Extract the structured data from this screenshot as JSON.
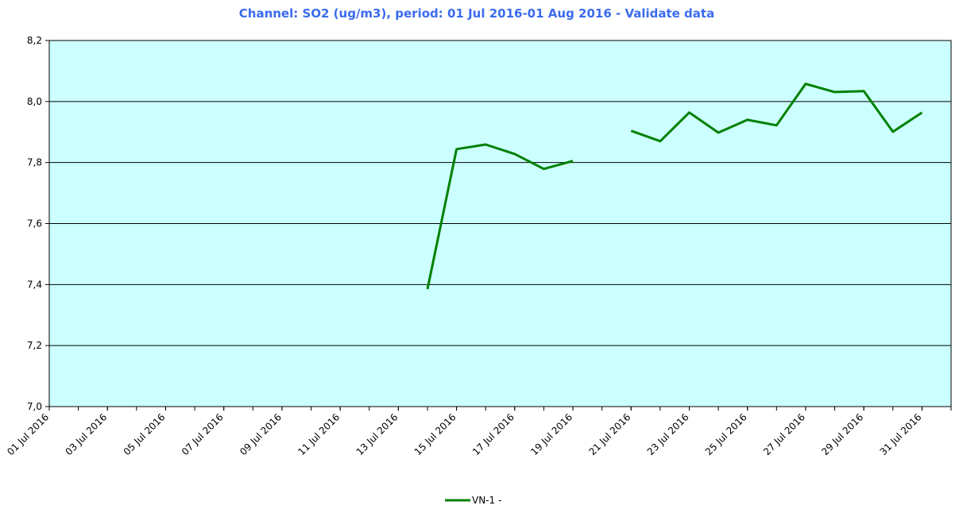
{
  "chart_data": {
    "type": "line",
    "title": "Channel: SO2 (ug/m3), period: 01 Jul 2016-01 Aug 2016 - Validate data",
    "x": [
      "14 Jul 2016",
      "15 Jul 2016",
      "16 Jul 2016",
      "17 Jul 2016",
      "18 Jul 2016",
      "19 Jul 2016",
      "20 Jul 2016",
      "21 Jul 2016",
      "22 Jul 2016",
      "23 Jul 2016",
      "24 Jul 2016",
      "25 Jul 2016",
      "26 Jul 2016",
      "27 Jul 2016",
      "28 Jul 2016",
      "29 Jul 2016",
      "30 Jul 2016",
      "31 Jul 2016"
    ],
    "series": [
      {
        "name": "VN-1 -",
        "color": "#008000",
        "values": [
          7.385,
          7.844,
          7.859,
          7.828,
          7.779,
          7.805,
          null,
          7.904,
          7.87,
          7.964,
          7.898,
          7.94,
          7.922,
          8.058,
          8.031,
          8.034,
          7.901,
          7.964
        ]
      }
    ],
    "xlim": [
      "01 Jul 2016",
      "01 Aug 2016"
    ],
    "xticks": [
      "01 Jul 2016",
      "03 Jul 2016",
      "05 Jul 2016",
      "07 Jul 2016",
      "09 Jul 2016",
      "11 Jul 2016",
      "13 Jul 2016",
      "15 Jul 2016",
      "17 Jul 2016",
      "19 Jul 2016",
      "21 Jul 2016",
      "23 Jul 2016",
      "25 Jul 2016",
      "27 Jul 2016",
      "29 Jul 2016",
      "31 Jul 2016"
    ],
    "ylim": [
      7.0,
      8.2
    ],
    "yticks": [
      {
        "value": 7.0,
        "label": "7,0"
      },
      {
        "value": 7.2,
        "label": "7,2"
      },
      {
        "value": 7.4,
        "label": "7,4"
      },
      {
        "value": 7.6,
        "label": "7,6"
      },
      {
        "value": 7.8,
        "label": "7,8"
      },
      {
        "value": 8.0,
        "label": "8,0"
      },
      {
        "value": 8.2,
        "label": "8,2"
      }
    ],
    "plot_background": "#ccffff",
    "grid": true,
    "legend": "bottom"
  }
}
